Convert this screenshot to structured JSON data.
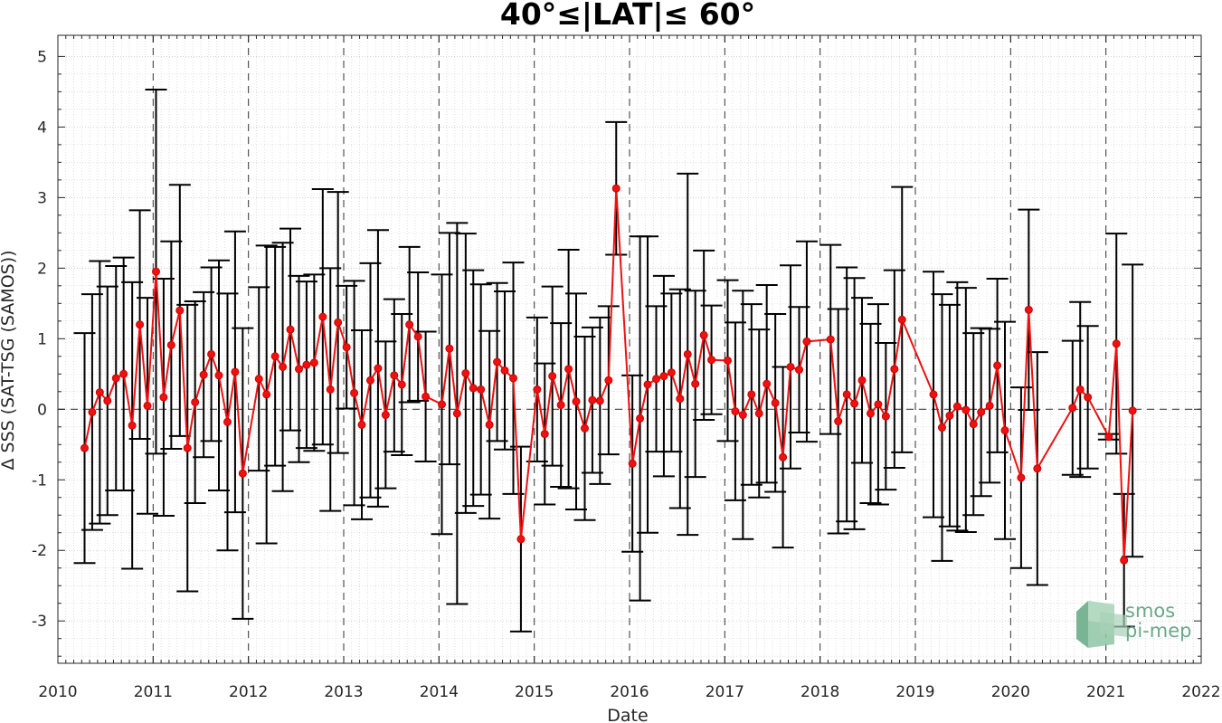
{
  "chart_data": {
    "type": "line",
    "title": "40°≤|LAT|≤ 60°",
    "xlabel": "Date",
    "ylabel": "Δ SSS (SAT-TSG (SAMOS))",
    "xlim": [
      2010,
      2022
    ],
    "ylim": [
      -3.6,
      5.3
    ],
    "x_ticks": [
      "2010",
      "2011",
      "2012",
      "2013",
      "2014",
      "2015",
      "2016",
      "2017",
      "2018",
      "2019",
      "2020",
      "2021",
      "2022"
    ],
    "y_ticks": [
      "-3",
      "-2",
      "-1",
      "0",
      "1",
      "2",
      "3",
      "4",
      "5"
    ],
    "grid": "minor dotted grid, dashed vertical lines at year boundaries, dashed zero line",
    "series_color": "#ee1111",
    "errorbar_color": "#000000",
    "logo": {
      "line1": "smos",
      "line2": "pi-mep",
      "color": "#6aa889"
    },
    "points": [
      {
        "x": 2010.28,
        "y": -0.55,
        "err": 1.63
      },
      {
        "x": 2010.36,
        "y": -0.04,
        "err": 1.67
      },
      {
        "x": 2010.44,
        "y": 0.24,
        "err": 1.86
      },
      {
        "x": 2010.52,
        "y": 0.12,
        "err": 1.62
      },
      {
        "x": 2010.61,
        "y": 0.44,
        "err": 1.59
      },
      {
        "x": 2010.69,
        "y": 0.5,
        "err": 1.65
      },
      {
        "x": 2010.78,
        "y": -0.23,
        "err": 2.03
      },
      {
        "x": 2010.86,
        "y": 1.2,
        "err": 1.62
      },
      {
        "x": 2010.94,
        "y": 0.05,
        "err": 1.53
      },
      {
        "x": 2011.03,
        "y": 1.95,
        "err": 2.58
      },
      {
        "x": 2011.11,
        "y": 0.17,
        "err": 1.68
      },
      {
        "x": 2011.19,
        "y": 0.91,
        "err": 1.47
      },
      {
        "x": 2011.28,
        "y": 1.4,
        "err": 1.78
      },
      {
        "x": 2011.36,
        "y": -0.55,
        "err": 2.03
      },
      {
        "x": 2011.44,
        "y": 0.1,
        "err": 1.43
      },
      {
        "x": 2011.53,
        "y": 0.49,
        "err": 1.17
      },
      {
        "x": 2011.61,
        "y": 0.78,
        "err": 1.23
      },
      {
        "x": 2011.69,
        "y": 0.48,
        "err": 1.63
      },
      {
        "x": 2011.78,
        "y": -0.18,
        "err": 1.82
      },
      {
        "x": 2011.86,
        "y": 0.53,
        "err": 1.99
      },
      {
        "x": 2011.94,
        "y": -0.91,
        "err": 2.06
      },
      {
        "x": 2012.11,
        "y": 0.43,
        "err": 1.3
      },
      {
        "x": 2012.19,
        "y": 0.21,
        "err": 2.11
      },
      {
        "x": 2012.28,
        "y": 0.75,
        "err": 1.55
      },
      {
        "x": 2012.36,
        "y": 0.6,
        "err": 1.76
      },
      {
        "x": 2012.44,
        "y": 1.13,
        "err": 1.43
      },
      {
        "x": 2012.53,
        "y": 0.57,
        "err": 1.32
      },
      {
        "x": 2012.61,
        "y": 0.63,
        "err": 1.18
      },
      {
        "x": 2012.69,
        "y": 0.66,
        "err": 1.25
      },
      {
        "x": 2012.78,
        "y": 1.31,
        "err": 1.81
      },
      {
        "x": 2012.86,
        "y": 0.28,
        "err": 1.72
      },
      {
        "x": 2012.94,
        "y": 1.23,
        "err": 1.85
      },
      {
        "x": 2013.03,
        "y": 0.88,
        "err": 0.87
      },
      {
        "x": 2013.11,
        "y": 0.23,
        "err": 1.59
      },
      {
        "x": 2013.19,
        "y": -0.22,
        "err": 1.34
      },
      {
        "x": 2013.28,
        "y": 0.41,
        "err": 1.66
      },
      {
        "x": 2013.36,
        "y": 0.58,
        "err": 1.96
      },
      {
        "x": 2013.44,
        "y": -0.08,
        "err": 1.04
      },
      {
        "x": 2013.53,
        "y": 0.48,
        "err": 1.08
      },
      {
        "x": 2013.61,
        "y": 0.35,
        "err": 1.0
      },
      {
        "x": 2013.69,
        "y": 1.2,
        "err": 1.1
      },
      {
        "x": 2013.78,
        "y": 1.03,
        "err": 0.91
      },
      {
        "x": 2013.86,
        "y": 0.18,
        "err": 0.92
      },
      {
        "x": 2014.03,
        "y": 0.07,
        "err": 1.84
      },
      {
        "x": 2014.11,
        "y": 0.86,
        "err": 1.64
      },
      {
        "x": 2014.19,
        "y": -0.06,
        "err": 2.7
      },
      {
        "x": 2014.28,
        "y": 0.51,
        "err": 1.98
      },
      {
        "x": 2014.36,
        "y": 0.3,
        "err": 1.67
      },
      {
        "x": 2014.44,
        "y": 0.28,
        "err": 1.49
      },
      {
        "x": 2014.53,
        "y": -0.22,
        "err": 1.33
      },
      {
        "x": 2014.61,
        "y": 0.67,
        "err": 1.12
      },
      {
        "x": 2014.69,
        "y": 0.55,
        "err": 1.12
      },
      {
        "x": 2014.78,
        "y": 0.44,
        "err": 1.64
      },
      {
        "x": 2014.86,
        "y": -1.84,
        "err": 1.31
      },
      {
        "x": 2015.03,
        "y": 0.28,
        "err": 1.02
      },
      {
        "x": 2015.11,
        "y": -0.35,
        "err": 1.0
      },
      {
        "x": 2015.19,
        "y": 0.47,
        "err": 1.27
      },
      {
        "x": 2015.28,
        "y": 0.06,
        "err": 1.16
      },
      {
        "x": 2015.36,
        "y": 0.57,
        "err": 1.69
      },
      {
        "x": 2015.44,
        "y": 0.11,
        "err": 1.53
      },
      {
        "x": 2015.53,
        "y": -0.27,
        "err": 1.3
      },
      {
        "x": 2015.61,
        "y": 0.13,
        "err": 1.03
      },
      {
        "x": 2015.69,
        "y": 0.12,
        "err": 1.18
      },
      {
        "x": 2015.78,
        "y": 0.41,
        "err": 1.05
      },
      {
        "x": 2015.86,
        "y": 3.13,
        "err": 0.94
      },
      {
        "x": 2016.03,
        "y": -0.77,
        "err": 1.25
      },
      {
        "x": 2016.11,
        "y": -0.13,
        "err": 2.58
      },
      {
        "x": 2016.19,
        "y": 0.35,
        "err": 2.1
      },
      {
        "x": 2016.28,
        "y": 0.43,
        "err": 1.03
      },
      {
        "x": 2016.36,
        "y": 0.47,
        "err": 1.42
      },
      {
        "x": 2016.44,
        "y": 0.52,
        "err": 1.12
      },
      {
        "x": 2016.53,
        "y": 0.15,
        "err": 1.55
      },
      {
        "x": 2016.61,
        "y": 0.78,
        "err": 2.56
      },
      {
        "x": 2016.69,
        "y": 0.36,
        "err": 1.32
      },
      {
        "x": 2016.78,
        "y": 1.05,
        "err": 1.2
      },
      {
        "x": 2016.86,
        "y": 0.7,
        "err": 0.77
      },
      {
        "x": 2017.03,
        "y": 0.69,
        "err": 1.14
      },
      {
        "x": 2017.11,
        "y": -0.03,
        "err": 1.26
      },
      {
        "x": 2017.19,
        "y": -0.08,
        "err": 1.76
      },
      {
        "x": 2017.28,
        "y": 0.21,
        "err": 1.28
      },
      {
        "x": 2017.36,
        "y": -0.06,
        "err": 1.19
      },
      {
        "x": 2017.44,
        "y": 0.36,
        "err": 1.4
      },
      {
        "x": 2017.53,
        "y": 0.09,
        "err": 1.26
      },
      {
        "x": 2017.61,
        "y": -0.68,
        "err": 1.28
      },
      {
        "x": 2017.69,
        "y": 0.6,
        "err": 1.44
      },
      {
        "x": 2017.78,
        "y": 0.56,
        "err": 0.89
      },
      {
        "x": 2017.86,
        "y": 0.96,
        "err": 1.42
      },
      {
        "x": 2018.11,
        "y": 0.99,
        "err": 1.34
      },
      {
        "x": 2018.19,
        "y": -0.17,
        "err": 1.59
      },
      {
        "x": 2018.28,
        "y": 0.21,
        "err": 1.8
      },
      {
        "x": 2018.36,
        "y": 0.08,
        "err": 1.78
      },
      {
        "x": 2018.44,
        "y": 0.41,
        "err": 1.17
      },
      {
        "x": 2018.53,
        "y": -0.06,
        "err": 1.27
      },
      {
        "x": 2018.61,
        "y": 0.07,
        "err": 1.42
      },
      {
        "x": 2018.69,
        "y": -0.1,
        "err": 1.04
      },
      {
        "x": 2018.78,
        "y": 0.57,
        "err": 1.4
      },
      {
        "x": 2018.86,
        "y": 1.27,
        "err": 1.88
      },
      {
        "x": 2019.19,
        "y": 0.21,
        "err": 1.74
      },
      {
        "x": 2019.28,
        "y": -0.26,
        "err": 1.89
      },
      {
        "x": 2019.36,
        "y": -0.09,
        "err": 1.57
      },
      {
        "x": 2019.44,
        "y": 0.04,
        "err": 1.76
      },
      {
        "x": 2019.53,
        "y": -0.01,
        "err": 1.73
      },
      {
        "x": 2019.61,
        "y": -0.21,
        "err": 1.29
      },
      {
        "x": 2019.69,
        "y": -0.04,
        "err": 1.19
      },
      {
        "x": 2019.78,
        "y": 0.05,
        "err": 1.09
      },
      {
        "x": 2019.86,
        "y": 0.62,
        "err": 1.23
      },
      {
        "x": 2019.94,
        "y": -0.3,
        "err": 1.54
      },
      {
        "x": 2020.11,
        "y": -0.97,
        "err": 1.28
      },
      {
        "x": 2020.19,
        "y": 1.41,
        "err": 1.42
      },
      {
        "x": 2020.28,
        "y": -0.84,
        "err": 1.65
      },
      {
        "x": 2020.65,
        "y": 0.02,
        "err": 0.95
      },
      {
        "x": 2020.73,
        "y": 0.28,
        "err": 1.24
      },
      {
        "x": 2020.81,
        "y": 0.17,
        "err": 1.01
      },
      {
        "x": 2021.03,
        "y": -0.39,
        "err": 0.04
      },
      {
        "x": 2021.11,
        "y": 0.93,
        "err": 1.56
      },
      {
        "x": 2021.19,
        "y": -2.14,
        "err": 0.94
      },
      {
        "x": 2021.28,
        "y": -0.02,
        "err": 2.07
      }
    ]
  }
}
